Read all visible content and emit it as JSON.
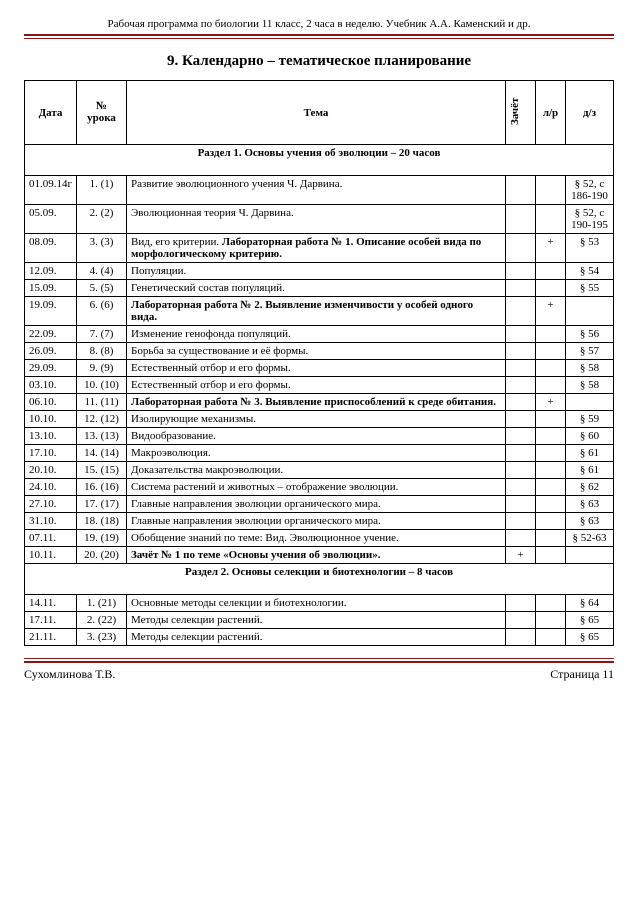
{
  "runningHeader": "Рабочая программа по биологии 11 класс, 2 часа в неделю. Учебник А.А. Каменский и др.",
  "sectionTitle": "9. Календарно – тематическое планирование",
  "columns": {
    "date": "Дата",
    "num": "№ урока",
    "topic": "Тема",
    "zach": "Зачёт",
    "lr": "л/р",
    "dz": "д/з"
  },
  "sections": [
    {
      "heading": "Раздел 1.  Основы   учения  об  эволюции – 20 часов",
      "rows": [
        {
          "date": "01.09.14г",
          "num": "1. (1)",
          "topic": "Развитие эволюционного учения Ч. Дарвина.",
          "zach": "",
          "lr": "",
          "dz": "§ 52, с 186-190"
        },
        {
          "date": "05.09.",
          "num": "2. (2)",
          "topic": "Эволюционная   теория Ч. Дарвина.",
          "zach": "",
          "lr": "",
          "dz": "§ 52, с 190-195"
        },
        {
          "date": "08.09.",
          "num": "3. (3)",
          "topic": "Вид, его критерии.  <b>Лабораторная работа № 1. Описание особей вида по морфологическому критерию.</b>",
          "zach": "",
          "lr": "+",
          "dz": "§ 53"
        },
        {
          "date": "12.09.",
          "num": "4. (4)",
          "topic": "Популяции.",
          "zach": "",
          "lr": "",
          "dz": "§ 54"
        },
        {
          "date": "15.09.",
          "num": "5. (5)",
          "topic": "Генетический состав популяций.",
          "zach": "",
          "lr": "",
          "dz": "§ 55"
        },
        {
          "date": "19.09.",
          "num": "6. (6)",
          "topic": "<b>Лабораторная работа № 2. Выявление изменчивости у особей одного вида.</b>",
          "zach": "",
          "lr": "+",
          "dz": ""
        },
        {
          "date": "22.09.",
          "num": "7. (7)",
          "topic": "Изменение генофонда популяций.",
          "zach": "",
          "lr": "",
          "dz": "§ 56"
        },
        {
          "date": "26.09.",
          "num": "8. (8)",
          "topic": "Борьба за существование и её формы.",
          "zach": "",
          "lr": "",
          "dz": "§ 57"
        },
        {
          "date": "29.09.",
          "num": "9. (9)",
          "topic": "Естественный отбор и его формы.",
          "zach": "",
          "lr": "",
          "dz": "§ 58"
        },
        {
          "date": "03.10.",
          "num": "10. (10)",
          "topic": "Естественный отбор и его формы.",
          "zach": "",
          "lr": "",
          "dz": "§ 58"
        },
        {
          "date": "06.10.",
          "num": "11. (11)",
          "topic": "<b>Лабораторная работа № 3. Выявление приспособлений к среде обитания.</b>",
          "zach": "",
          "lr": "+",
          "dz": ""
        },
        {
          "date": "10.10.",
          "num": "12. (12)",
          "topic": "Изолирующие механизмы.",
          "zach": "",
          "lr": "",
          "dz": "§ 59"
        },
        {
          "date": "13.10.",
          "num": "13. (13)",
          "topic": "Видообразование.",
          "zach": "",
          "lr": "",
          "dz": "§ 60"
        },
        {
          "date": "17.10.",
          "num": "14. (14)",
          "topic": "Макроэволюция.",
          "zach": "",
          "lr": "",
          "dz": "§ 61"
        },
        {
          "date": "20.10.",
          "num": "15. (15)",
          "topic": "Доказательства макроэволюции.",
          "zach": "",
          "lr": "",
          "dz": "§ 61"
        },
        {
          "date": "24.10.",
          "num": "16. (16)",
          "topic": "Система растений и животных – отображение эволюции.",
          "zach": "",
          "lr": "",
          "dz": "§ 62"
        },
        {
          "date": "27.10.",
          "num": "17. (17)",
          "topic": "Главные направления эволюции органического мира.",
          "zach": "",
          "lr": "",
          "dz": "§ 63"
        },
        {
          "date": "31.10.",
          "num": "18. (18)",
          "topic": "Главные направления эволюции органического мира.",
          "zach": "",
          "lr": "",
          "dz": "§ 63"
        },
        {
          "date": "07.11.",
          "num": "19. (19)",
          "topic": "Обобщение знаний по теме: Вид. Эволюционное учение.",
          "zach": "",
          "lr": "",
          "dz": "§ 52-63"
        },
        {
          "date": "10.11.",
          "num": "20. (20)",
          "topic": "<b>Зачёт № 1 по теме «Основы учения об эволюции».</b>",
          "zach": "+",
          "lr": "",
          "dz": ""
        }
      ]
    },
    {
      "heading": "Раздел  2.   Основы селекции и биотехнологии – 8 часов",
      "rows": [
        {
          "date": "14.11.",
          "num": "1. (21)",
          "topic": "Основные методы селекции и биотехнологии.",
          "zach": "",
          "lr": "",
          "dz": "§ 64"
        },
        {
          "date": "17.11.",
          "num": "2. (22)",
          "topic": "Методы селекции растений.",
          "zach": "",
          "lr": "",
          "dz": "§ 65"
        },
        {
          "date": "21.11.",
          "num": "3. (23)",
          "topic": "Методы селекции растений.",
          "zach": "",
          "lr": "",
          "dz": "§ 65"
        }
      ]
    }
  ],
  "footer": {
    "author": "Сухомлинова Т.В.",
    "page": "Страница 11"
  }
}
